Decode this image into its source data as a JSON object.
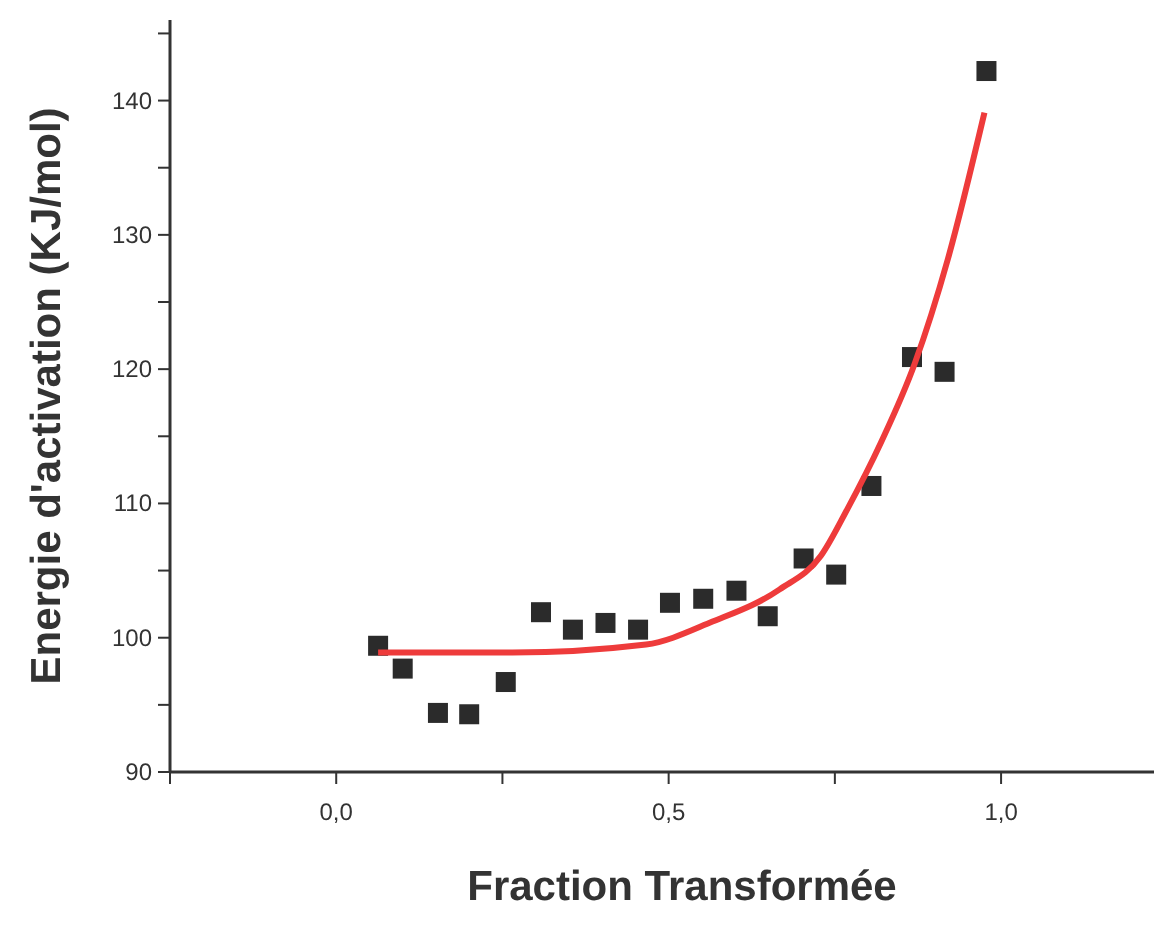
{
  "chart_data": {
    "type": "scatter",
    "xlabel": "Fraction Transformée",
    "ylabel": "Energie d'activation (KJ/mol)",
    "xlim": [
      -0.25,
      1.23
    ],
    "ylim": [
      90,
      146
    ],
    "xticks": [
      {
        "value": -0.25,
        "label": null
      },
      {
        "value": 0,
        "label": "0,0"
      },
      {
        "value": 0.25,
        "label": null
      },
      {
        "value": 0.5,
        "label": "0,5"
      },
      {
        "value": 0.75,
        "label": null
      },
      {
        "value": 1,
        "label": "1,0"
      }
    ],
    "yticks": [
      90,
      {
        "value": 95,
        "label": null
      },
      100,
      {
        "value": 105,
        "label": null
      },
      110,
      {
        "value": 115,
        "label": null
      },
      120,
      {
        "value": 125,
        "label": null
      },
      130,
      {
        "value": 135,
        "label": null
      },
      140,
      {
        "value": 145,
        "label": null
      }
    ],
    "grid": false,
    "series": [
      {
        "marker": "square",
        "color": "#2b2b2b",
        "x": [
          0.063,
          0.1,
          0.153,
          0.2,
          0.255,
          0.308,
          0.356,
          0.405,
          0.454,
          0.502,
          0.552,
          0.602,
          0.649,
          0.703,
          0.752,
          0.805,
          0.866,
          0.915,
          0.978
        ],
        "values": [
          99.4,
          97.7,
          94.4,
          94.3,
          96.7,
          101.9,
          100.6,
          101.1,
          100.6,
          102.6,
          102.9,
          103.5,
          101.6,
          105.9,
          104.7,
          111.3,
          120.9,
          119.8,
          142.2
        ]
      },
      {
        "type": "line",
        "marker": "none",
        "line_style": "solid",
        "color": "#ee3b3b",
        "x": [
          0.063,
          0.265,
          0.466,
          0.566,
          0.667,
          0.729,
          0.769,
          0.819,
          0.87,
          0.92,
          0.975
        ],
        "values": [
          98.9,
          98.9,
          99.5,
          101.2,
          103.6,
          106.1,
          109.6,
          114.5,
          120.4,
          128.2,
          139.1
        ]
      }
    ]
  }
}
